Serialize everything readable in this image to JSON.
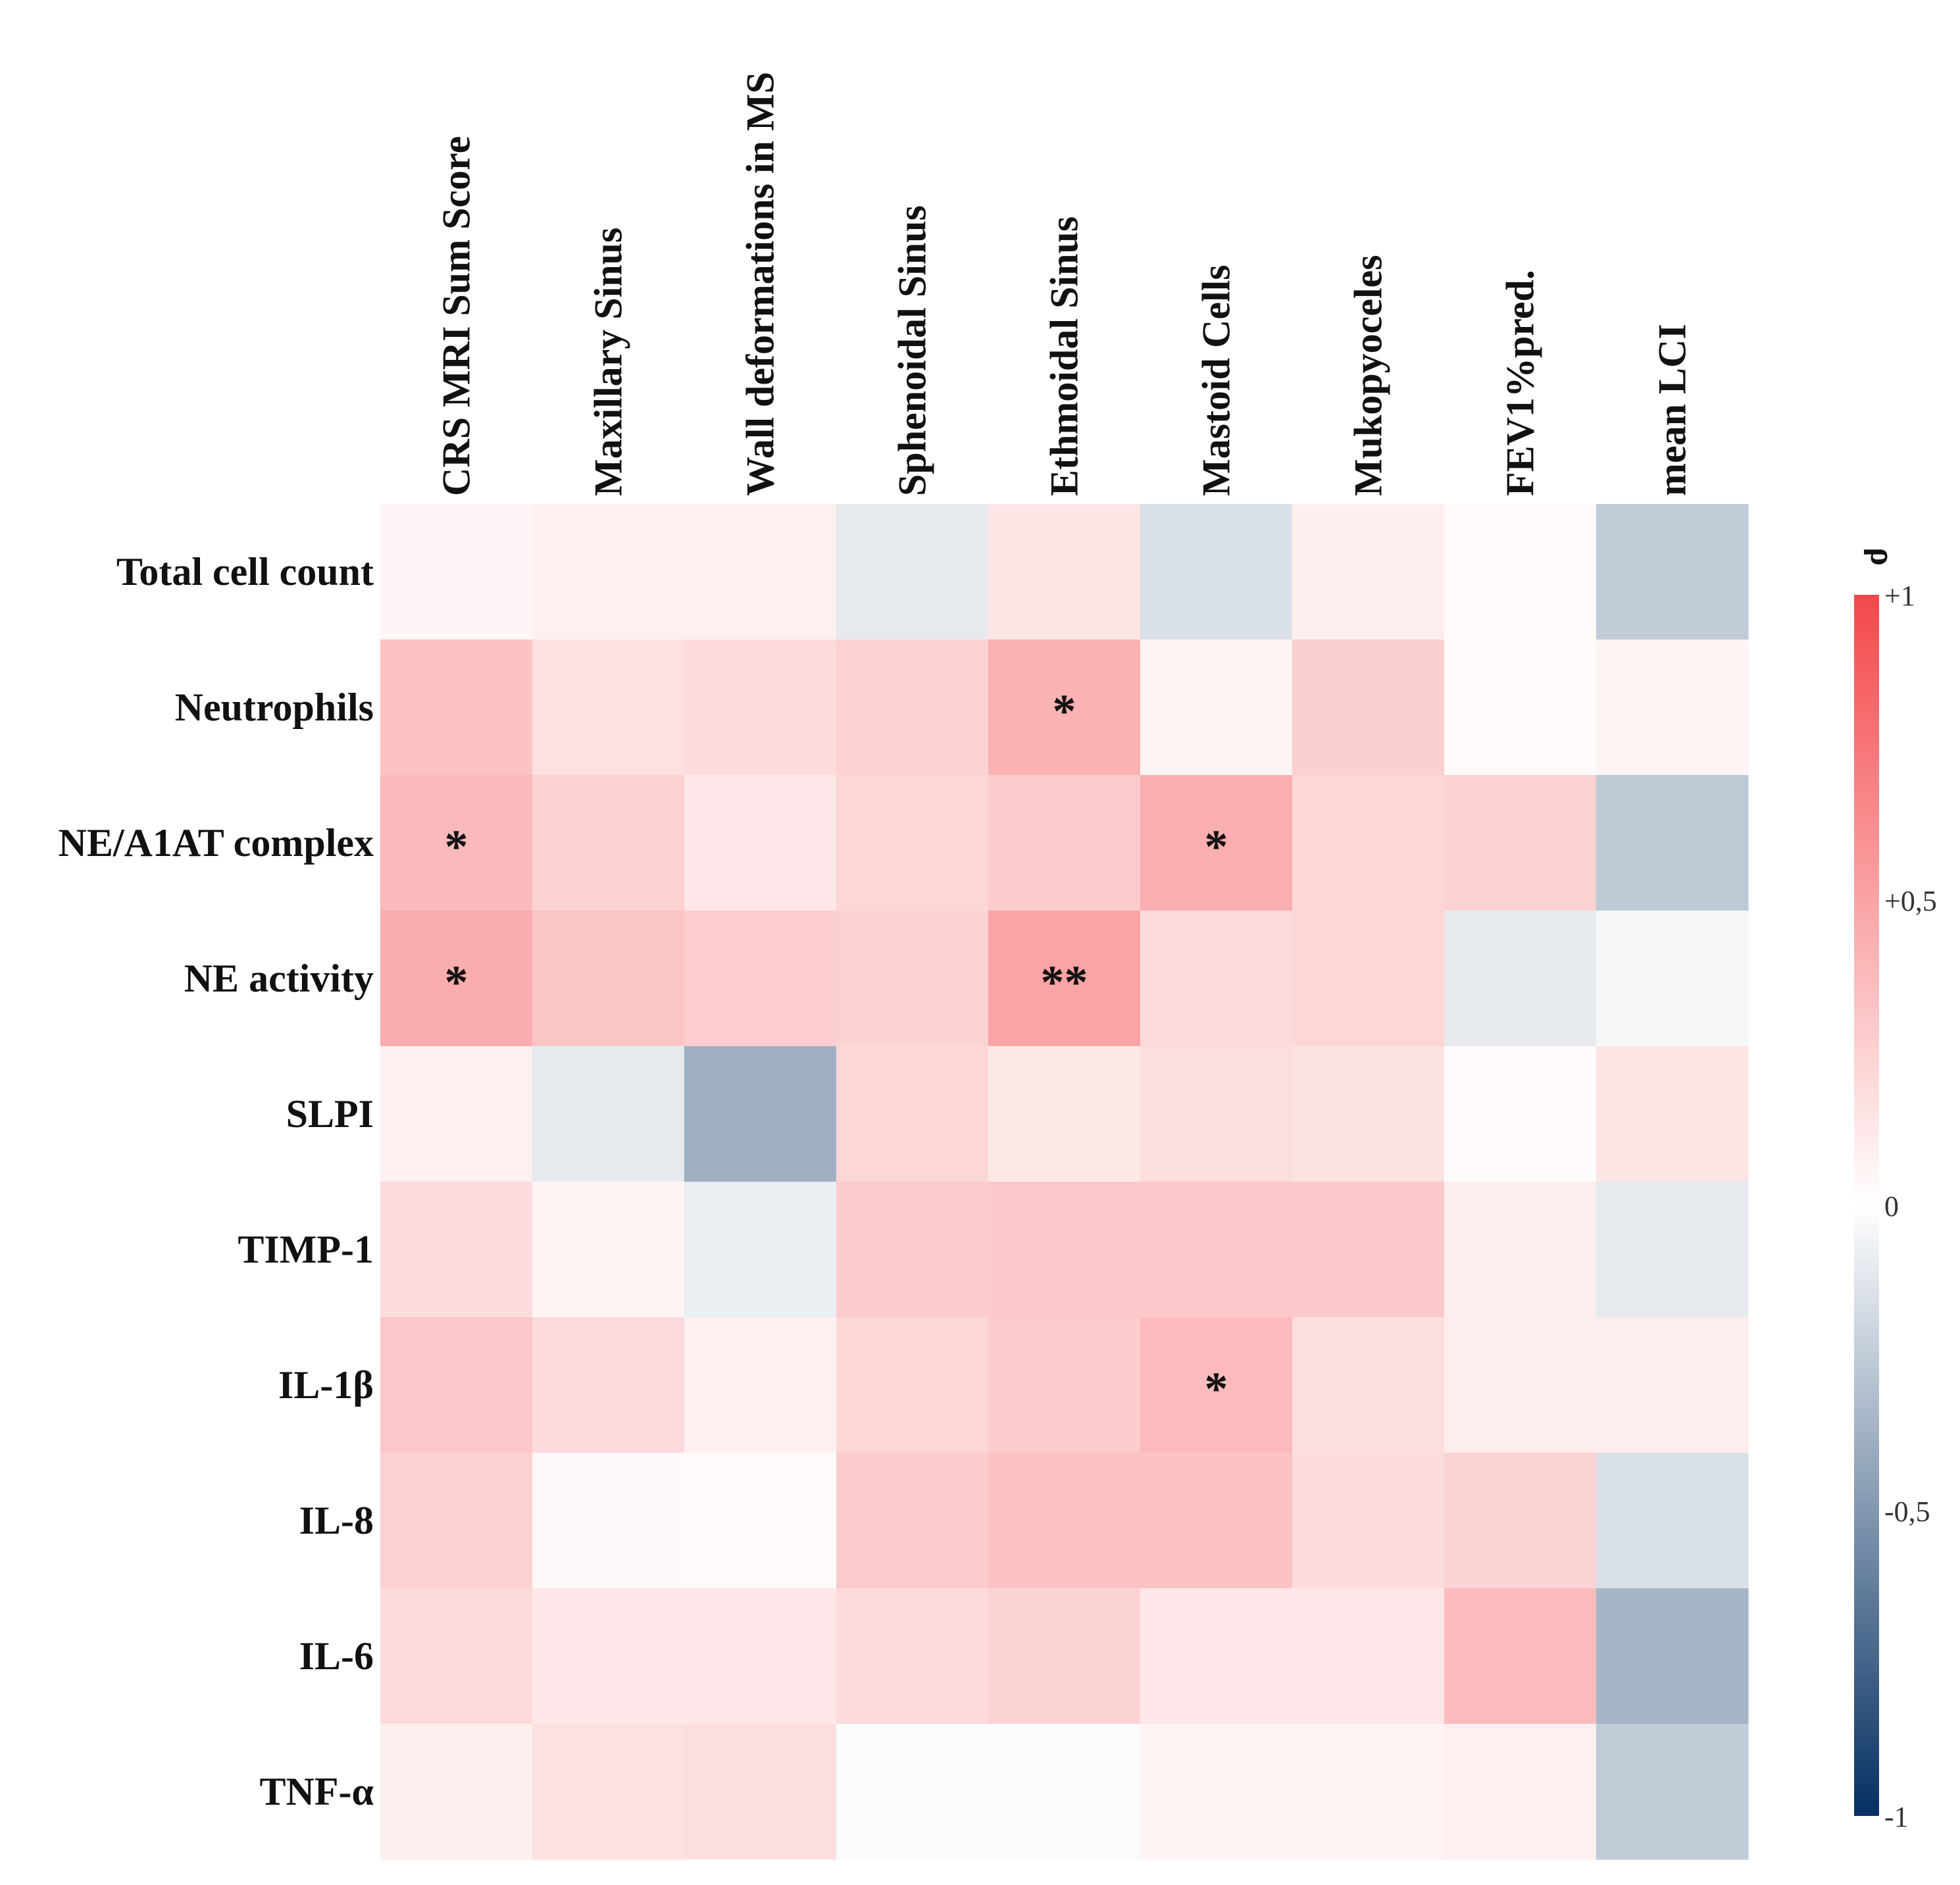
{
  "chart_data": {
    "type": "heatmap",
    "title": "",
    "columns": [
      "CRS MRI Sum Score",
      "Maxillary Sinus",
      "Wall deformations in MS",
      "Sphenoidal Sinus",
      "Ethmoidal Sinus",
      "Mastoid Cells",
      "Mukopyoceles",
      "FEV1%pred.",
      "mean LCI"
    ],
    "rows": [
      "Total cell count",
      "Neutrophils",
      "NE/A1AT complex",
      "NE activity",
      "SLPI",
      "TIMP-1",
      "IL-1β",
      "IL-8",
      "IL-6",
      "TNF-α"
    ],
    "values": [
      [
        0.05,
        0.08,
        0.08,
        -0.1,
        0.14,
        -0.15,
        0.09,
        0.03,
        -0.25
      ],
      [
        0.33,
        0.17,
        0.2,
        0.25,
        0.42,
        0.06,
        0.26,
        0.02,
        0.06
      ],
      [
        0.38,
        0.25,
        0.13,
        0.22,
        0.28,
        0.44,
        0.22,
        0.25,
        -0.26
      ],
      [
        0.45,
        0.32,
        0.27,
        0.25,
        0.5,
        0.2,
        0.22,
        -0.1,
        -0.04
      ],
      [
        0.08,
        -0.1,
        -0.38,
        0.22,
        0.12,
        0.18,
        0.16,
        0.02,
        0.14
      ],
      [
        0.2,
        0.06,
        -0.08,
        0.28,
        0.3,
        0.3,
        0.3,
        0.1,
        -0.1
      ],
      [
        0.3,
        0.2,
        0.08,
        0.22,
        0.28,
        0.37,
        0.18,
        0.1,
        0.1
      ],
      [
        0.25,
        0.04,
        0.03,
        0.28,
        0.33,
        0.33,
        0.19,
        0.24,
        -0.15
      ],
      [
        0.2,
        0.13,
        0.13,
        0.2,
        0.24,
        0.13,
        0.13,
        0.37,
        -0.36
      ],
      [
        0.09,
        0.17,
        0.18,
        -0.02,
        -0.02,
        0.06,
        0.06,
        0.08,
        -0.25
      ]
    ],
    "annotations": [
      {
        "row": 1,
        "col": 4,
        "text": "*"
      },
      {
        "row": 2,
        "col": 0,
        "text": "*"
      },
      {
        "row": 2,
        "col": 5,
        "text": "*"
      },
      {
        "row": 3,
        "col": 0,
        "text": "*"
      },
      {
        "row": 3,
        "col": 4,
        "text": "**"
      },
      {
        "row": 6,
        "col": 5,
        "text": "*"
      }
    ],
    "colorbar": {
      "label": "ρ",
      "range": [
        -1,
        1
      ],
      "ticks": [
        {
          "value": 1,
          "label": "+1"
        },
        {
          "value": 0.5,
          "label": "+0,5"
        },
        {
          "value": 0,
          "label": "0"
        },
        {
          "value": -0.5,
          "label": "-0,5"
        },
        {
          "value": -1,
          "label": "-1"
        }
      ],
      "colors": {
        "negative": "#053061",
        "zero": "#ffffff",
        "positive": "#f4484b"
      }
    },
    "legend_position": "right"
  }
}
